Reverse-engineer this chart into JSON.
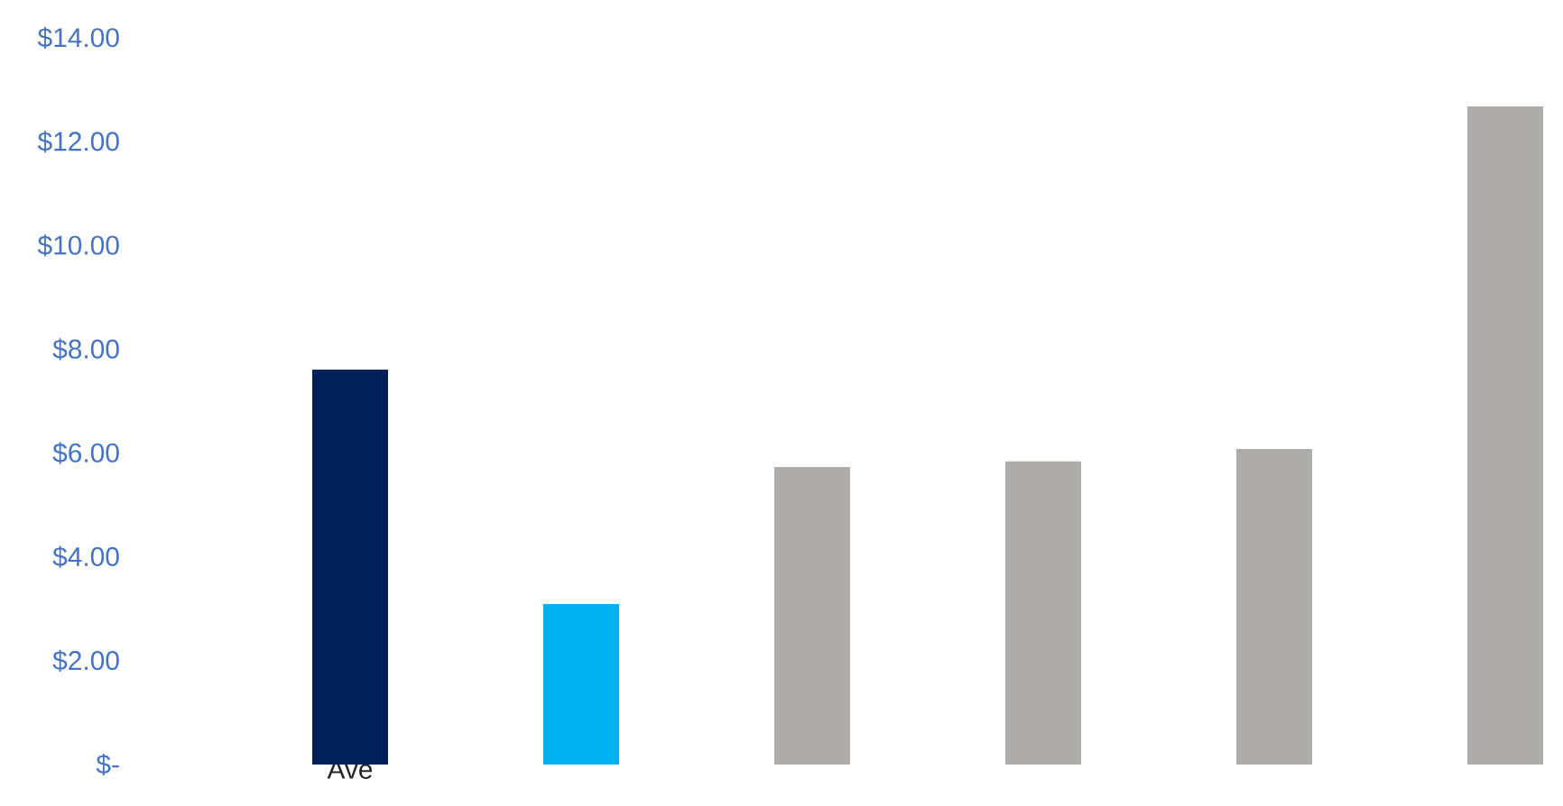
{
  "chart_data": {
    "type": "bar",
    "categories": [
      "Ave",
      null,
      null,
      null,
      null,
      null
    ],
    "values": [
      7.61,
      3.09,
      5.73,
      5.84,
      6.08,
      12.68
    ],
    "colors": [
      "#00205b",
      "#00b0f0",
      "#afabab",
      "#afabab",
      "#afabab",
      "#afabab"
    ],
    "ylim": [
      0,
      14
    ],
    "yticks": [
      {
        "value": 0,
        "label": "$-"
      },
      {
        "value": 2,
        "label": "$2.00"
      },
      {
        "value": 4,
        "label": "$4.00"
      },
      {
        "value": 6,
        "label": "$6.00"
      },
      {
        "value": 8,
        "label": "$8.00"
      },
      {
        "value": 10,
        "label": "$10.00"
      },
      {
        "value": 12,
        "label": "$12.00"
      },
      {
        "value": 14,
        "label": "$14.00"
      }
    ]
  }
}
